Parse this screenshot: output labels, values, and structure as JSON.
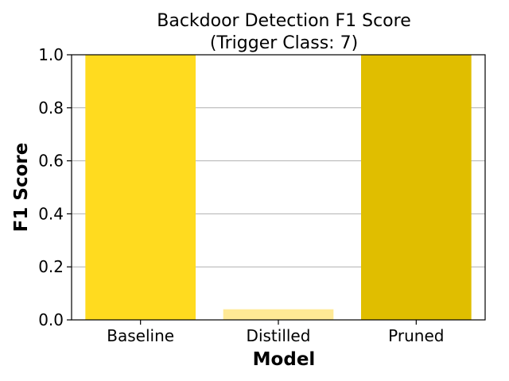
{
  "chart_data": {
    "type": "bar",
    "title_line1": "Backdoor Detection F1 Score",
    "title_line2": "(Trigger Class: 7)",
    "xlabel": "Model",
    "ylabel": "F1 Score",
    "categories": [
      "Baseline",
      "Distilled",
      "Pruned"
    ],
    "values": [
      1.0,
      0.04,
      1.0
    ],
    "colors": [
      "#FFDB1F",
      "#FFE995",
      "#E0BE00"
    ],
    "ylim": [
      0.0,
      1.0
    ],
    "yticks": [
      "0.0",
      "0.2",
      "0.4",
      "0.6",
      "0.8",
      "1.0"
    ],
    "grid": "y-axis only",
    "legend": "none"
  }
}
